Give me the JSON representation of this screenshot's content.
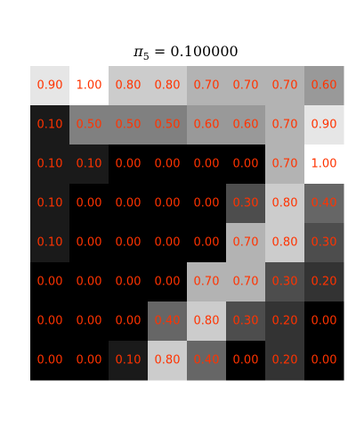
{
  "chart_data": {
    "type": "heatmap",
    "title": {
      "symbol": "π",
      "subscript": "5",
      "equals": " = ",
      "value": "0.100000"
    },
    "colormap": "gray",
    "vmin": 0,
    "vmax": 1,
    "label_color": "#ff3300",
    "rows": [
      [
        "0.90",
        "1.00",
        "0.80",
        "0.80",
        "0.70",
        "0.70",
        "0.70",
        "0.60"
      ],
      [
        "0.10",
        "0.50",
        "0.50",
        "0.50",
        "0.60",
        "0.60",
        "0.70",
        "0.90"
      ],
      [
        "0.10",
        "0.10",
        "0.00",
        "0.00",
        "0.00",
        "0.00",
        "0.70",
        "1.00"
      ],
      [
        "0.10",
        "0.00",
        "0.00",
        "0.00",
        "0.00",
        "0.30",
        "0.80",
        "0.40"
      ],
      [
        "0.10",
        "0.00",
        "0.00",
        "0.00",
        "0.00",
        "0.70",
        "0.80",
        "0.30"
      ],
      [
        "0.00",
        "0.00",
        "0.00",
        "0.00",
        "0.70",
        "0.70",
        "0.30",
        "0.20"
      ],
      [
        "0.00",
        "0.00",
        "0.00",
        "0.40",
        "0.80",
        "0.30",
        "0.20",
        "0.00"
      ],
      [
        "0.00",
        "0.00",
        "0.10",
        "0.80",
        "0.40",
        "0.00",
        "0.20",
        "0.00"
      ]
    ]
  }
}
